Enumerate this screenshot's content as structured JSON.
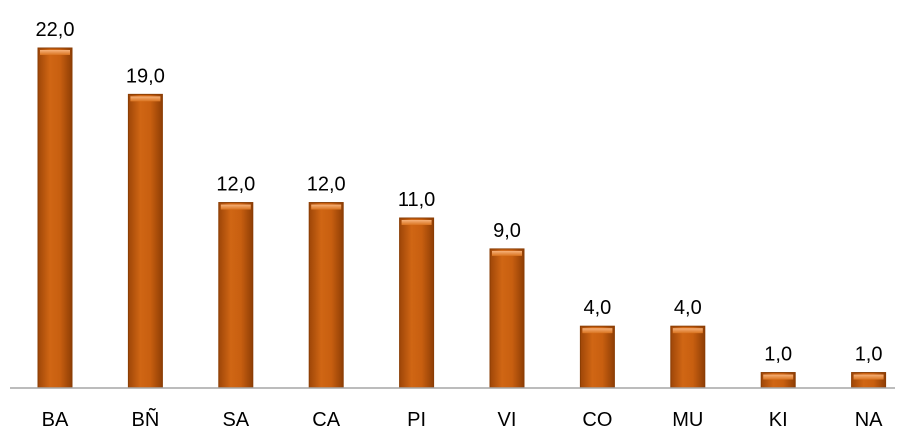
{
  "chart_data": {
    "type": "bar",
    "categories": [
      "BA",
      "BÑ",
      "SA",
      "CA",
      "PI",
      "VI",
      "CO",
      "MU",
      "KI",
      "NA"
    ],
    "values": [
      22.0,
      19.0,
      12.0,
      12.0,
      11.0,
      9.0,
      4.0,
      4.0,
      1.0,
      1.0
    ],
    "data_labels": [
      "22,0",
      "19,0",
      "12,0",
      "12,0",
      "11,0",
      "9,0",
      "4,0",
      "4,0",
      "1,0",
      "1,0"
    ],
    "title": "",
    "xlabel": "",
    "ylabel": "",
    "ylim": [
      0,
      22
    ],
    "grid": false,
    "legend": "none",
    "colors": {
      "bar_fill": "#c45c0c",
      "bar_edge": "#8a3d04",
      "bar_highlight": "#f0a060",
      "axis": "#a6a6a6"
    }
  }
}
